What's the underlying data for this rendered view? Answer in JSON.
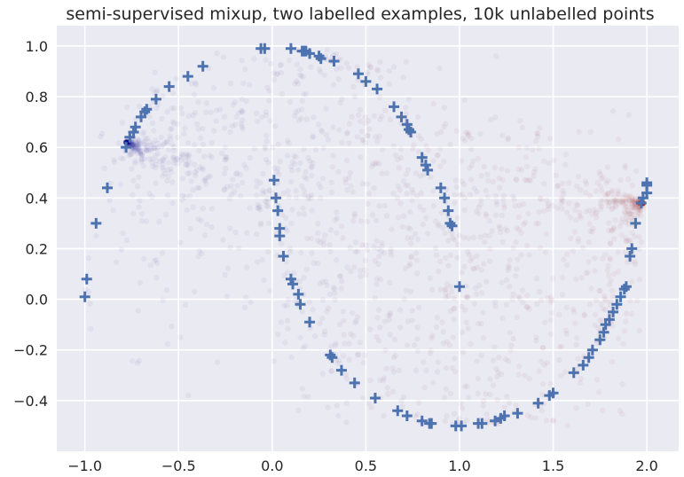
{
  "chart_data": {
    "type": "scatter",
    "title": "semi-supervised mixup, two labelled examples, 10k unlabelled points",
    "xlabel": "",
    "ylabel": "",
    "xlim": [
      -1.15,
      2.17
    ],
    "ylim": [
      -0.6,
      1.08
    ],
    "xticks": [
      -1.0,
      -0.5,
      0.0,
      0.5,
      1.0,
      1.5,
      2.0
    ],
    "xtick_labels": [
      "−1.0",
      "−0.5",
      "0.0",
      "0.5",
      "1.0",
      "1.5",
      "2.0"
    ],
    "yticks": [
      -0.4,
      -0.2,
      0.0,
      0.2,
      0.4,
      0.6,
      0.8,
      1.0
    ],
    "ytick_labels": [
      "−0.4",
      "−0.2",
      "0.0",
      "0.2",
      "0.4",
      "0.6",
      "0.8",
      "1.0"
    ],
    "grid": true,
    "background": "#eaeaf2",
    "colors": {
      "labelled_marker": "#4c72b0",
      "class_a": "#00008b",
      "class_b": "#8b0000",
      "grid": "#ffffff",
      "text": "#262626"
    },
    "series": [
      {
        "marker": "plus",
        "x": [
          -1.0,
          -0.99,
          -0.94,
          -0.88,
          -0.78,
          -0.76,
          -0.74,
          -0.73,
          -0.7,
          -0.68,
          -0.67,
          -0.62,
          -0.55,
          -0.45,
          -0.37,
          -0.06,
          -0.04,
          0.1,
          0.16,
          0.17,
          0.18,
          0.2,
          0.25,
          0.26,
          0.33,
          0.46,
          0.5,
          0.56,
          0.65,
          0.69,
          0.72,
          0.73,
          0.74,
          0.8,
          0.82,
          0.83,
          0.9,
          0.92,
          0.94,
          0.95,
          0.96,
          0.01,
          0.02,
          0.03,
          0.04,
          0.04,
          0.06,
          0.1,
          0.11,
          0.14,
          0.15,
          0.2,
          0.31,
          0.32,
          0.37,
          0.44,
          0.55,
          0.67,
          0.72,
          0.8,
          0.84,
          0.85,
          0.98,
          1.01,
          1.1,
          1.12,
          1.19,
          1.22,
          1.24,
          1.31,
          1.42,
          1.48,
          1.5,
          1.61,
          1.66,
          1.69,
          1.71,
          1.75,
          1.77,
          1.78,
          1.8,
          1.82,
          1.84,
          1.86,
          1.88,
          1.89,
          1.91,
          1.92,
          1.94,
          1.97,
          1.98,
          2.0,
          2.0,
          2.0,
          1.0
        ],
        "y": [
          0.01,
          0.08,
          0.3,
          0.44,
          0.6,
          0.64,
          0.66,
          0.68,
          0.72,
          0.74,
          0.75,
          0.79,
          0.84,
          0.88,
          0.92,
          0.99,
          0.99,
          0.99,
          0.98,
          0.98,
          0.98,
          0.97,
          0.96,
          0.95,
          0.94,
          0.89,
          0.86,
          0.83,
          0.76,
          0.72,
          0.69,
          0.67,
          0.66,
          0.56,
          0.53,
          0.51,
          0.44,
          0.4,
          0.35,
          0.3,
          0.29,
          0.47,
          0.4,
          0.35,
          0.28,
          0.25,
          0.17,
          0.08,
          0.06,
          0.02,
          -0.02,
          -0.09,
          -0.22,
          -0.23,
          -0.28,
          -0.33,
          -0.39,
          -0.44,
          -0.46,
          -0.48,
          -0.49,
          -0.49,
          -0.5,
          -0.5,
          -0.49,
          -0.49,
          -0.48,
          -0.47,
          -0.46,
          -0.45,
          -0.41,
          -0.38,
          -0.37,
          -0.29,
          -0.26,
          -0.23,
          -0.2,
          -0.16,
          -0.13,
          -0.1,
          -0.08,
          -0.05,
          -0.02,
          0.01,
          0.04,
          0.05,
          0.17,
          0.2,
          0.3,
          0.38,
          0.4,
          0.42,
          0.45,
          0.46,
          0.05
        ]
      },
      {
        "marker": "dot",
        "note_points": "10k unlabelled points (rendered as sampled faint dots)",
        "class_a_anchor": [
          -0.78,
          0.62
        ],
        "class_b_anchor": [
          1.98,
          0.38
        ]
      }
    ]
  }
}
